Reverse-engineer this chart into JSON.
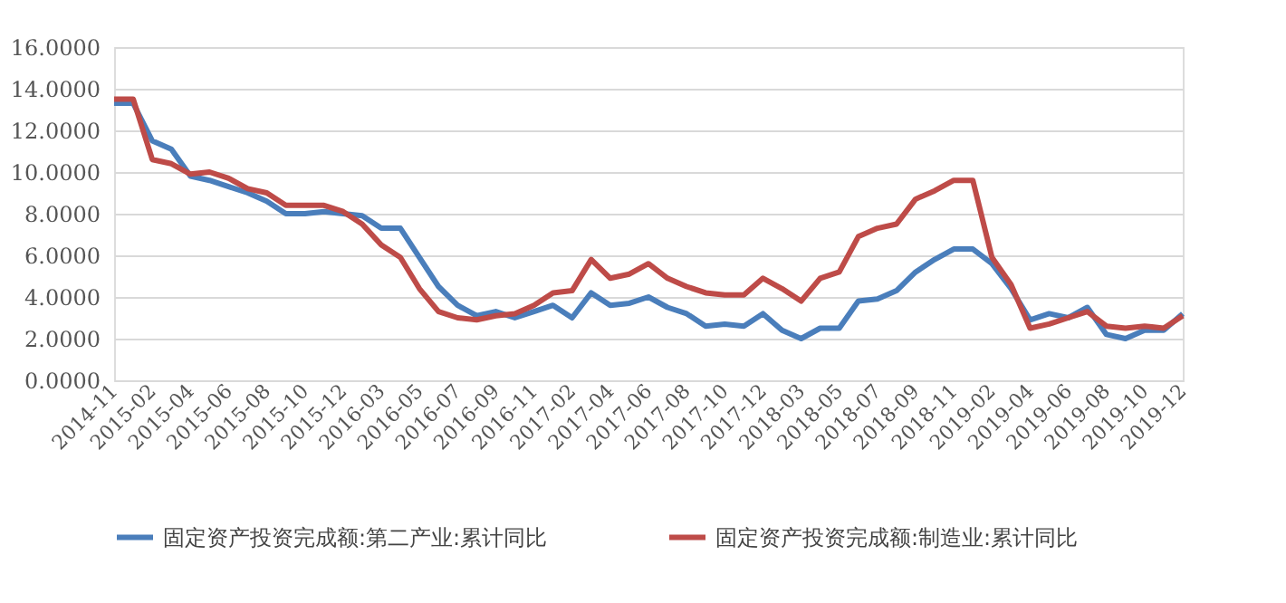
{
  "chart_data": {
    "type": "line",
    "categories": [
      "2014-11",
      null,
      "2015-02",
      null,
      "2015-04",
      null,
      "2015-06",
      null,
      "2015-08",
      null,
      "2015-10",
      null,
      "2015-12",
      null,
      "2016-03",
      null,
      "2016-05",
      null,
      "2016-07",
      null,
      "2016-09",
      null,
      "2016-11",
      null,
      "2017-02",
      null,
      "2017-04",
      null,
      "2017-06",
      null,
      "2017-08",
      null,
      "2017-10",
      null,
      "2017-12",
      null,
      "2018-03",
      null,
      "2018-05",
      null,
      "2018-07",
      null,
      "2018-09",
      null,
      "2018-11",
      null,
      "2019-02",
      null,
      "2019-04",
      null,
      "2019-06",
      null,
      "2019-08",
      null,
      "2019-10",
      null,
      "2019-12"
    ],
    "series": [
      {
        "name": "固定资产投资完成额:第二产业:累计同比",
        "color": "#4a7ebb",
        "values": [
          13.3,
          13.3,
          11.5,
          11.1,
          9.8,
          9.6,
          9.3,
          9.0,
          8.6,
          8.0,
          8.0,
          8.1,
          8.0,
          7.9,
          7.3,
          7.3,
          5.9,
          4.5,
          3.6,
          3.1,
          3.3,
          3.0,
          3.3,
          3.6,
          3.0,
          4.2,
          3.6,
          3.7,
          4.0,
          3.5,
          3.2,
          2.6,
          2.7,
          2.6,
          3.2,
          2.4,
          2.0,
          2.5,
          2.5,
          3.8,
          3.9,
          4.3,
          5.2,
          5.8,
          6.3,
          6.3,
          5.6,
          4.4,
          2.9,
          3.2,
          3.0,
          3.5,
          2.2,
          2.0,
          2.4,
          2.4,
          3.2
        ]
      },
      {
        "name": "固定资产投资完成额:制造业:累计同比",
        "color": "#be4b48",
        "values": [
          13.5,
          13.5,
          10.6,
          10.4,
          9.9,
          10.0,
          9.7,
          9.2,
          9.0,
          8.4,
          8.4,
          8.4,
          8.1,
          7.5,
          6.5,
          5.9,
          4.4,
          3.3,
          3.0,
          2.9,
          3.1,
          3.2,
          3.6,
          4.2,
          4.3,
          5.8,
          4.9,
          5.1,
          5.6,
          4.9,
          4.5,
          4.2,
          4.1,
          4.1,
          4.9,
          4.4,
          3.8,
          4.9,
          5.2,
          6.9,
          7.3,
          7.5,
          8.7,
          9.1,
          9.6,
          9.6,
          5.9,
          4.6,
          2.5,
          2.7,
          3.0,
          3.3,
          2.6,
          2.5,
          2.6,
          2.5,
          3.1
        ]
      }
    ],
    "ylim": [
      0,
      16
    ],
    "yticks": [
      {
        "value": 0,
        "label": "0.0000"
      },
      {
        "value": 2,
        "label": "2.0000"
      },
      {
        "value": 4,
        "label": "4.0000"
      },
      {
        "value": 6,
        "label": "6.0000"
      },
      {
        "value": 8,
        "label": "8.0000"
      },
      {
        "value": 10,
        "label": "10.0000"
      },
      {
        "value": 12,
        "label": "12.0000"
      },
      {
        "value": 14,
        "label": "14.0000"
      },
      {
        "value": 16,
        "label": "16.0000"
      }
    ],
    "grid": "y",
    "legend": "bottom",
    "marker": "none",
    "line_style": "solid"
  }
}
